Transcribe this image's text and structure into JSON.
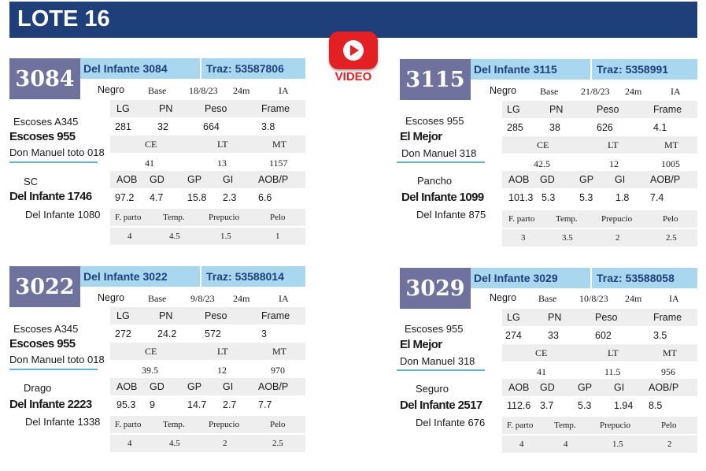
{
  "header": {
    "title": "LOTE 16"
  },
  "video": {
    "label": "VIDEO"
  },
  "labels": {
    "color_base_row": [
      "Base",
      "IA"
    ],
    "row1": [
      "LG",
      "PN",
      "Peso",
      "Frame"
    ],
    "row2": [
      "CE",
      "LT",
      "MT"
    ],
    "row3": [
      "AOB",
      "GD",
      "GP",
      "GI",
      "AOB/P"
    ],
    "row4": [
      "F. parto",
      "Temp.",
      "Prepucio",
      "Pelo"
    ]
  },
  "lots": [
    {
      "number": "3084",
      "name": "Del Infante 3084",
      "traz": "Traz: 53587806",
      "color": "Negro",
      "date": "18/8/23",
      "age": "24m",
      "pedigree": [
        "Escoses A345",
        "Escoses 955",
        "Don Manuel toto 018",
        "SC",
        "Del Infante 1746",
        "Del Infante 1080"
      ],
      "v1": [
        "281",
        "32",
        "664",
        "3.8"
      ],
      "v2": [
        "41",
        "13",
        "1157"
      ],
      "v3": [
        "97.2",
        "4.7",
        "15.8",
        "2.3",
        "6.6"
      ],
      "v4": [
        "4",
        "4.5",
        "1.5",
        "1"
      ]
    },
    {
      "number": "3115",
      "name": "Del Infante 3115",
      "traz": "Traz: 5358991",
      "color": "Negro",
      "date": "21/8/23",
      "age": "24m",
      "pedigree": [
        "Escoses 955",
        "El Mejor",
        "Don Manuel 318",
        "Pancho",
        "Del Infante 1099",
        "Del Infante 875"
      ],
      "v1": [
        "285",
        "38",
        "626",
        "4.1"
      ],
      "v2": [
        "42.5",
        "12",
        "1005"
      ],
      "v3": [
        "101.3",
        "5.3",
        "5.3",
        "1.8",
        "7.4"
      ],
      "v4": [
        "3",
        "3.5",
        "2",
        "2.5"
      ]
    },
    {
      "number": "3022",
      "name": "Del Infante 3022",
      "traz": "Traz: 53588014",
      "color": "Negro",
      "date": "9/8/23",
      "age": "24m",
      "pedigree": [
        "Escoses A345",
        "Escoses 955",
        "Don Manuel toto 018",
        "Drago",
        "Del Infante 2223",
        "Del Infante 1338"
      ],
      "v1": [
        "272",
        "24.2",
        "572",
        "3"
      ],
      "v2": [
        "39.5",
        "12",
        "970"
      ],
      "v3": [
        "95.3",
        "9",
        "14.7",
        "2.7",
        "7.7"
      ],
      "v4": [
        "4",
        "4.5",
        "2",
        "2.5"
      ]
    },
    {
      "number": "3029",
      "name": "Del Infante 3029",
      "traz": "Traz: 53588058",
      "color": "Negro",
      "date": "10/8/23",
      "age": "24m",
      "pedigree": [
        "Escoses 955",
        "El Mejor",
        "Don Manuel 318",
        "Seguro",
        "Del Infante 2517",
        "Del Infante 676"
      ],
      "v1": [
        "274",
        "33",
        "602",
        "3.5"
      ],
      "v2": [
        "41",
        "11.5",
        "956"
      ],
      "v3": [
        "112.6",
        "3.7",
        "5.3",
        "1.94",
        "8.5"
      ],
      "v4": [
        "4",
        "4",
        "1.5",
        "2"
      ]
    }
  ]
}
